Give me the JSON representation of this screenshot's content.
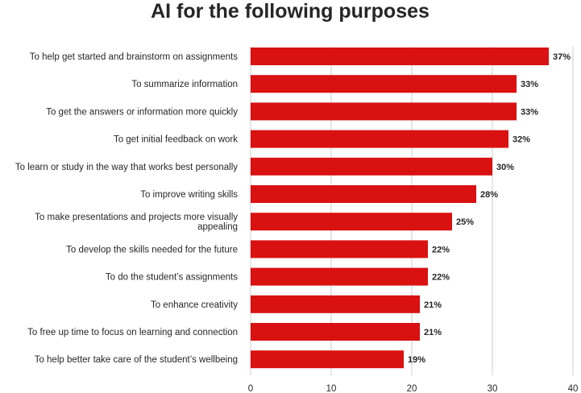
{
  "chart_data": {
    "type": "bar",
    "orientation": "horizontal",
    "title": "AI for the following purposes",
    "categories": [
      "To help get started and brainstorm on assignments",
      "To summarize information",
      "To get the answers or information more quickly",
      "To get initial feedback on work",
      "To learn or study in the way that works best personally",
      "To improve writing skills",
      "To make presentations and projects more visually appealing",
      "To develop the skills needed for the future",
      "To do the student’s assignments",
      "To enhance creativity",
      "To free up time to focus on learning and connection",
      "To help better take care of the student’s wellbeing"
    ],
    "values": [
      37,
      33,
      33,
      32,
      30,
      28,
      25,
      22,
      22,
      21,
      21,
      19
    ],
    "value_labels": [
      "37%",
      "33%",
      "33%",
      "32%",
      "30%",
      "28%",
      "25%",
      "22%",
      "22%",
      "21%",
      "21%",
      "19%"
    ],
    "xlim": [
      0,
      40
    ],
    "xticks": [
      0,
      10,
      20,
      30,
      40
    ],
    "xlabel": "",
    "ylabel": "",
    "bar_color": "#d91111",
    "grid": true
  }
}
